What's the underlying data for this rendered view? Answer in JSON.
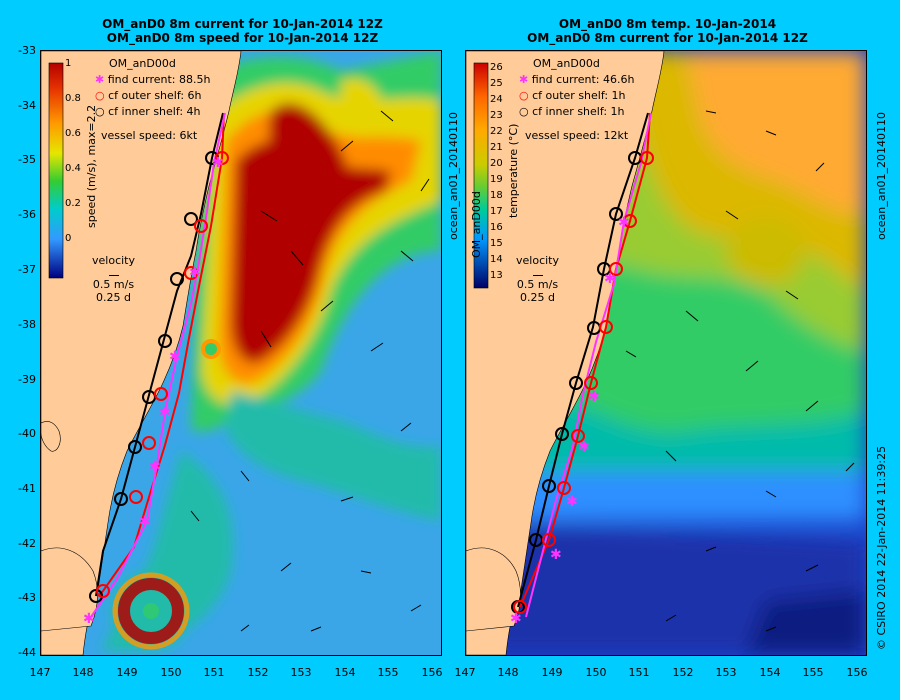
{
  "left_panel": {
    "title_line1": "OM_anD0 8m current for 10-Jan-2014 12Z",
    "title_line2": "OM_anD0 8m speed for 10-Jan-2014 12Z",
    "model_label": "OM_anD00d",
    "find_current": "find current: 88.5h",
    "cf_outer": "cf outer shelf: 6h",
    "cf_inner": "cf inner shelf: 4h",
    "vessel_speed": "vessel speed: 6kt",
    "colorbar_label": "speed (m/s), max=2.2",
    "colorbar_ticks": [
      "1",
      "0.8",
      "0.6",
      "0.4",
      "0.2",
      "0"
    ],
    "velocity_label": "velocity",
    "velocity_scale": "0.5 m/s",
    "velocity_time": "0.25 d"
  },
  "right_panel": {
    "title_line1": "OM_anD0 8m temp. 10-Jan-2014",
    "title_line2": "OM_anD0 8m current for 10-Jan-2014 12Z",
    "model_label": "OM_anD00d",
    "find_current": "find current: 46.6h",
    "cf_outer": "cf outer shelf: 1h",
    "cf_inner": "cf inner shelf: 1h",
    "vessel_speed": "vessel speed: 12kt",
    "colorbar_label": "temperature (°C)",
    "colorbar_ticks": [
      "26",
      "25",
      "24",
      "23",
      "22",
      "21",
      "20",
      "19",
      "18",
      "17",
      "16",
      "15",
      "14",
      "13"
    ],
    "velocity_label": "velocity",
    "velocity_scale": "0.5 m/s",
    "velocity_time": "0.25 d",
    "side_label": "ocean_an01_20140110"
  },
  "left_side_label": "ocean_an01_20140110",
  "side_credit": "© CSIRO 2014   22-Jan-2014 11:39:25",
  "lat_ticks": [
    "-33",
    "-34",
    "-35",
    "-36",
    "-37",
    "-38",
    "-39",
    "-40",
    "-41",
    "-42",
    "-43",
    "-44"
  ],
  "lon_ticks_left": [
    "147",
    "148",
    "149",
    "150",
    "151",
    "152",
    "153",
    "154",
    "155",
    "156"
  ],
  "lon_ticks_right": [
    "147",
    "148",
    "149",
    "150",
    "151",
    "152",
    "153",
    "154",
    "155",
    "156"
  ],
  "colors": {
    "background": "#00ccff",
    "land": "#ffcc99",
    "find_track": "#ff33ff",
    "outer_track": "#ff0000",
    "inner_track": "#000000"
  }
}
